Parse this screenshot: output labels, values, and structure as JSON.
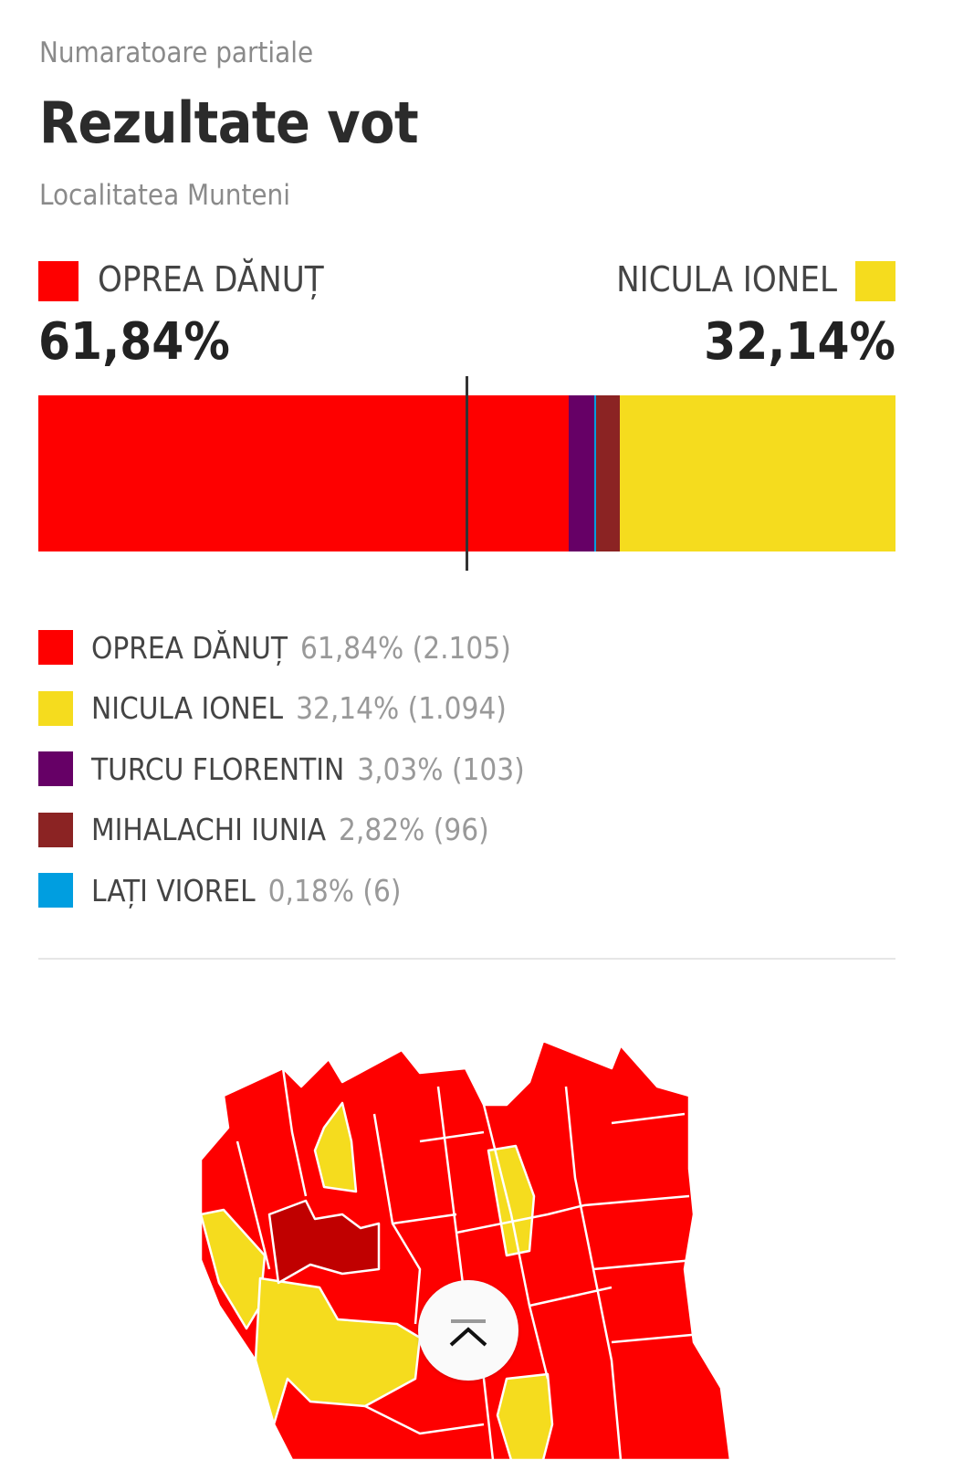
{
  "header": {
    "kicker": "Numaratoare partiale",
    "title": "Rezultate vot",
    "subtitle": "Localitatea Munteni"
  },
  "leaders": {
    "left": {
      "name": "OPREA DĂNUȚ",
      "pct": "61,84%",
      "color": "#fe0000"
    },
    "right": {
      "name": "NICULA IONEL",
      "pct": "32,14%",
      "color": "#f5dc1e"
    }
  },
  "bar": {
    "segments": [
      {
        "name": "OPREA DĂNUȚ",
        "value": 61.84,
        "color": "#fe0000"
      },
      {
        "name": "TURCU FLORENTIN",
        "value": 3.03,
        "color": "#660066"
      },
      {
        "name": "LAȚI VIOREL",
        "value": 0.18,
        "color": "#009ee0"
      },
      {
        "name": "MIHALACHI IUNIA",
        "value": 2.82,
        "color": "#8b2323"
      },
      {
        "name": "NICULA IONEL",
        "value": 32.14,
        "color": "#f5dc1e"
      }
    ],
    "threshold": 50
  },
  "legend": [
    {
      "name": "OPREA DĂNUȚ",
      "value": "61,84% (2.105)",
      "color": "#fe0000"
    },
    {
      "name": "NICULA IONEL",
      "value": "32,14% (1.094)",
      "color": "#f5dc1e"
    },
    {
      "name": "TURCU FLORENTIN",
      "value": "3,03% (103)",
      "color": "#660066"
    },
    {
      "name": "MIHALACHI IUNIA",
      "value": "2,82% (96)",
      "color": "#8b2323"
    },
    {
      "name": "LAȚI VIOREL",
      "value": "0,18% (6)",
      "color": "#009ee0"
    }
  ],
  "map": {
    "colors": {
      "red": "#fe0000",
      "yellow": "#f5dc1e",
      "darkred": "#c00000"
    }
  },
  "scroll_top_icon": "chevron-up-bar-icon"
}
